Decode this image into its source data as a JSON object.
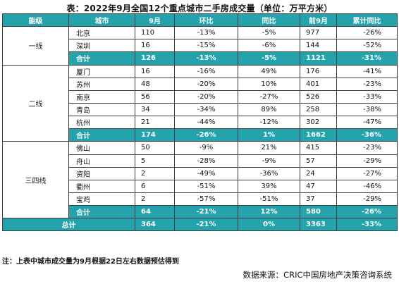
{
  "title": "表：2022年9月全国12个重点城市二手房成交量（单位：万平方米）",
  "headers": [
    "能级",
    "城市",
    "9月",
    "环比",
    "同比",
    "前9月",
    "累计同比"
  ],
  "groups": [
    {
      "tier": "一线",
      "rows": [
        [
          "北京",
          "110",
          "-13%",
          "-5%",
          "977",
          "-26%"
        ],
        [
          "深圳",
          "16",
          "-15%",
          "-6%",
          "144",
          "-52%"
        ]
      ],
      "subtotal": [
        "合计",
        "126",
        "-13%",
        "-5%",
        "1121",
        "-31%"
      ]
    },
    {
      "tier": "二线",
      "rows": [
        [
          "厦门",
          "16",
          "-16%",
          "49%",
          "176",
          "-41%"
        ],
        [
          "苏州",
          "48",
          "-20%",
          "10%",
          "401",
          "-23%"
        ],
        [
          "南京",
          "56",
          "-20%",
          "-27%",
          "526",
          "-33%"
        ],
        [
          "青岛",
          "34",
          "-34%",
          "89%",
          "258",
          "-38%"
        ],
        [
          "杭州",
          "21",
          "-44%",
          "-12%",
          "302",
          "-47%"
        ]
      ],
      "subtotal": [
        "合计",
        "174",
        "-26%",
        "1%",
        "1662",
        "-36%"
      ]
    },
    {
      "tier": "三四线",
      "rows": [
        [
          "佛山",
          "50",
          "-9%",
          "21%",
          "415",
          "-23%"
        ],
        [
          "舟山",
          "5",
          "-28%",
          "-9%",
          "57",
          "-29%"
        ],
        [
          "资阳",
          "2",
          "-49%",
          "-36%",
          "24",
          "-27%"
        ],
        [
          "衢州",
          "6",
          "-51%",
          "39%",
          "47",
          "-46%"
        ],
        [
          "宝鸡",
          "2",
          "-57%",
          "-51%",
          "37",
          "-29%"
        ]
      ],
      "subtotal": [
        "合计",
        "64",
        "-21%",
        "12%",
        "580",
        "-26%"
      ]
    }
  ],
  "total": [
    "总计",
    "364",
    "-21%",
    "0%",
    "3363",
    "-33%"
  ],
  "note": "注：上表中城市成交量为9月根据22日左右数据预估得到",
  "source": "数据来源：CRIC中国房地产决策咨询系统"
}
